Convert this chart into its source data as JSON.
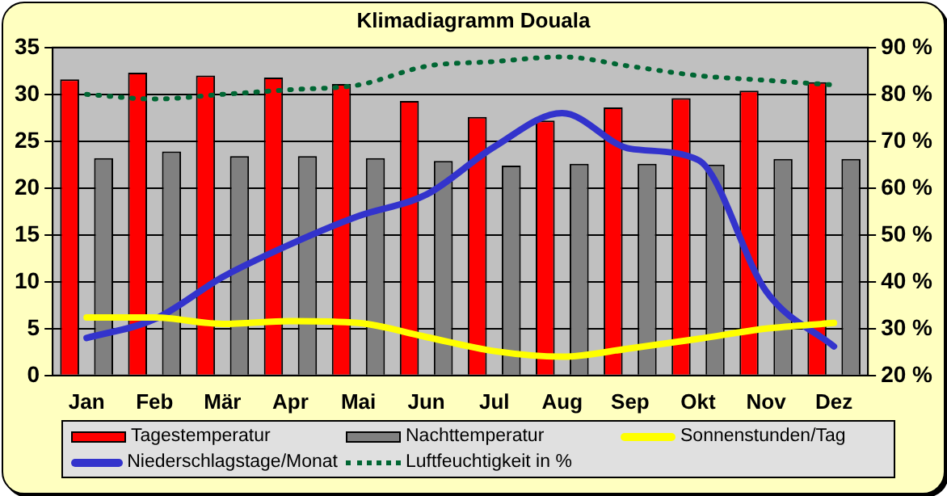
{
  "chart_data": {
    "type": "bar",
    "title": "Klimadiagramm Douala",
    "categories": [
      "Jan",
      "Feb",
      "Mär",
      "Apr",
      "Mai",
      "Jun",
      "Jul",
      "Aug",
      "Sep",
      "Okt",
      "Nov",
      "Dez"
    ],
    "series": [
      {
        "name": "Tagestemperatur",
        "color": "#ff0000",
        "values": [
          31.6,
          32.3,
          32,
          31.8,
          31.1,
          29.3,
          27.6,
          27.2,
          28.6,
          29.6,
          30.4,
          31.3
        ]
      },
      {
        "name": "Nachttemperatur",
        "color": "#808080",
        "values": [
          23.2,
          23.9,
          23.4,
          23.4,
          23.2,
          22.9,
          22.4,
          22.6,
          22.6,
          22.5,
          23.1,
          23.1
        ]
      },
      {
        "name": "Sonnenstunden/Tag",
        "type": "line",
        "color": "#ffff00",
        "line_style": "solid",
        "values": [
          6.2,
          6.2,
          5.5,
          5.8,
          5.6,
          4.1,
          2.6,
          2,
          2.9,
          3.9,
          5,
          5.6
        ]
      },
      {
        "name": "Niederschlagstage/Monat",
        "type": "line",
        "color": "#3333cc",
        "line_style": "solid",
        "values": [
          4,
          6,
          10.5,
          14,
          17,
          19.3,
          24.4,
          28,
          24.2,
          23,
          9,
          3.1
        ]
      },
      {
        "name": "Luftfeuchtigkeit in %",
        "type": "line",
        "axis": "y2",
        "color": "#006633",
        "line_style": "dotted",
        "values": [
          80,
          79,
          80,
          81,
          82,
          86,
          87,
          88,
          86,
          84,
          83,
          82
        ]
      }
    ],
    "ylim": [
      0,
      35
    ],
    "yticks": [
      0,
      5,
      10,
      15,
      20,
      25,
      30,
      35
    ],
    "y2lim": [
      20,
      90
    ],
    "y2ticks": [
      {
        "value": 20,
        "label": "20 %"
      },
      {
        "value": 30,
        "label": "30 %"
      },
      {
        "value": 40,
        "label": "40 %"
      },
      {
        "value": 50,
        "label": "50 %"
      },
      {
        "value": 60,
        "label": "60 %"
      },
      {
        "value": 70,
        "label": "70 %"
      },
      {
        "value": 80,
        "label": "80 %"
      },
      {
        "value": 90,
        "label": "90 %"
      }
    ],
    "grid": "y",
    "legend": "bottom",
    "marker": "none"
  }
}
